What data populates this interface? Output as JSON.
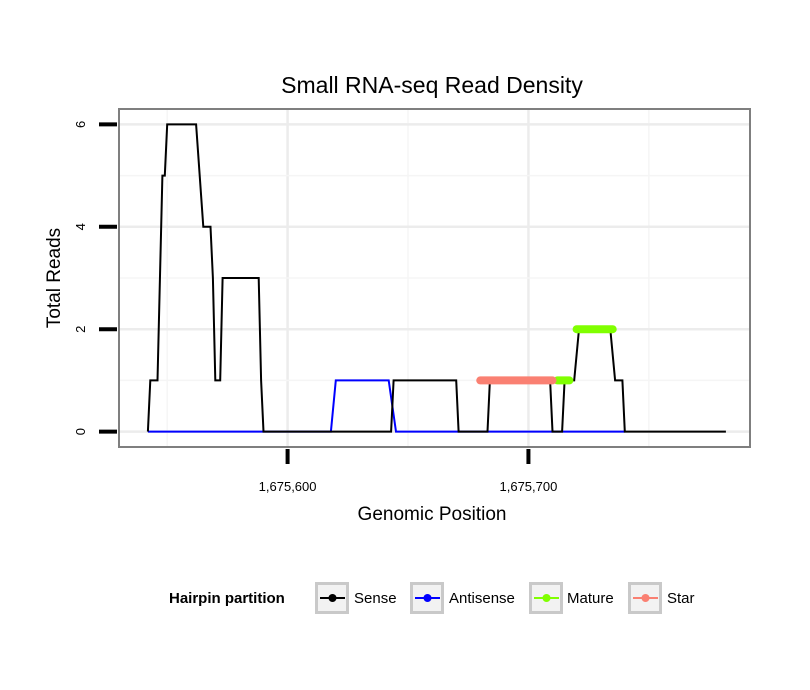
{
  "chart_data": {
    "type": "line",
    "title": "Small RNA-seq Read Density",
    "xlabel": "Genomic Position",
    "ylabel": "Total Reads",
    "xlim": [
      1675530,
      1675792
    ],
    "ylim": [
      -0.3,
      6.3
    ],
    "x_ticks": [
      1675600,
      1675700
    ],
    "x_tick_labels": [
      "1,675,600",
      "1,675,700"
    ],
    "y_ticks": [
      0,
      2,
      4,
      6
    ],
    "y_tick_labels": [
      "0",
      "2",
      "4",
      "6"
    ],
    "grid": true,
    "legend_position": "bottom",
    "legend_title": "Hairpin partition",
    "series": [
      {
        "name": "Sense",
        "color": "#000000",
        "style": "line",
        "points": [
          [
            1675542,
            0
          ],
          [
            1675543,
            1
          ],
          [
            1675546,
            1
          ],
          [
            1675548,
            5
          ],
          [
            1675549,
            5
          ],
          [
            1675550,
            6
          ],
          [
            1675562,
            6
          ],
          [
            1675565,
            4
          ],
          [
            1675568,
            4
          ],
          [
            1675569,
            3
          ],
          [
            1675570,
            1
          ],
          [
            1675572,
            1
          ],
          [
            1675573,
            3
          ],
          [
            1675588,
            3
          ],
          [
            1675589,
            1
          ],
          [
            1675590,
            0
          ],
          [
            1675643,
            0
          ],
          [
            1675644,
            1
          ],
          [
            1675670,
            1
          ],
          [
            1675671,
            0
          ],
          [
            1675683,
            0
          ],
          [
            1675684,
            1
          ],
          [
            1675709,
            1
          ],
          [
            1675710,
            0
          ],
          [
            1675714,
            0
          ],
          [
            1675715,
            1
          ],
          [
            1675719,
            1
          ],
          [
            1675721,
            2
          ],
          [
            1675734,
            2
          ],
          [
            1675736,
            1
          ],
          [
            1675739,
            1
          ],
          [
            1675740,
            0
          ],
          [
            1675782,
            0
          ]
        ]
      },
      {
        "name": "Antisense",
        "color": "#0000ff",
        "style": "line",
        "points": [
          [
            1675542,
            0
          ],
          [
            1675618,
            0
          ],
          [
            1675620,
            1
          ],
          [
            1675642,
            1
          ],
          [
            1675645,
            0
          ],
          [
            1675740,
            0
          ]
        ]
      },
      {
        "name": "Mature",
        "color": "#80ff00",
        "style": "segment",
        "segments": [
          {
            "x": [
              1675712,
              1675717
            ],
            "y": 1
          },
          {
            "x": [
              1675720,
              1675735
            ],
            "y": 2
          }
        ]
      },
      {
        "name": "Star",
        "color": "#fa8072",
        "style": "segment",
        "segments": [
          {
            "x": [
              1675680,
              1675710
            ],
            "y": 1
          }
        ]
      }
    ]
  }
}
